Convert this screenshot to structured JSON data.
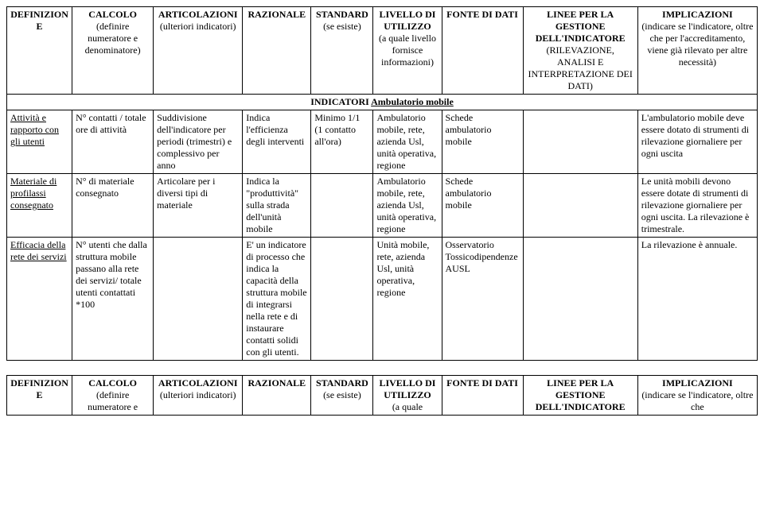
{
  "columns": [
    {
      "key": "def",
      "main": "DEFINIZIONE",
      "sub": ""
    },
    {
      "key": "calc",
      "main": "CALCOLO",
      "sub": "(definire numeratore e denominatore)"
    },
    {
      "key": "art",
      "main": "ARTICOLAZIONI",
      "sub": "(ulteriori indicatori)"
    },
    {
      "key": "raz",
      "main": "RAZIONALE",
      "sub": ""
    },
    {
      "key": "std",
      "main": "STANDARD",
      "sub": "(se esiste)"
    },
    {
      "key": "liv",
      "main": "LIVELLO DI UTILIZZO",
      "sub": "(a quale livello fornisce informazioni)"
    },
    {
      "key": "fonte",
      "main": "FONTE DI DATI",
      "sub": ""
    },
    {
      "key": "linee",
      "main": "LINEE PER LA GESTIONE DELL'INDICATORE",
      "sub": "(RILEVAZIONE, ANALISI E INTERPRETAZIONE DEI DATI)"
    },
    {
      "key": "impl",
      "main": "IMPLICAZIONI",
      "sub": "(indicare se l'indicatore, oltre che per l'accreditamento, viene già rilevato per altre necessità)"
    }
  ],
  "section_header": {
    "prefix": "INDICATORI ",
    "underline": "Ambulatorio mobile"
  },
  "rows": [
    {
      "def": "Attività e rapporto con gli utenti",
      "calc": "N° contatti / totale ore di attività",
      "art": "Suddivisione dell'indicatore per periodi (trimestri) e complessivo per anno",
      "raz": "Indica l'efficienza degli interventi",
      "std": "Minimo 1/1 (1 contatto all'ora)",
      "liv": "Ambulatorio mobile, rete, azienda Usl, unità operativa, regione",
      "fonte": "Schede ambulatorio mobile",
      "linee": "",
      "impl": "L'ambulatorio mobile deve essere dotato di strumenti di rilevazione giornaliere per ogni uscita"
    },
    {
      "def": "Materiale di profilassi consegnato",
      "calc": "N° di materiale consegnato",
      "art": "Articolare per i diversi tipi di materiale",
      "raz": "Indica la \"produttività\" sulla strada dell'unità mobile",
      "std": "",
      "liv": "Ambulatorio mobile, rete, azienda Usl, unità operativa, regione",
      "fonte": "Schede ambulatorio mobile",
      "linee": "",
      "impl": "Le unità mobili devono essere dotate di strumenti di rilevazione giornaliere per ogni uscita. La rilevazione è trimestrale."
    },
    {
      "def": "Efficacia della rete dei servizi",
      "calc": "N° utenti che dalla struttura mobile passano alla rete dei servizi/ totale utenti contattati *100",
      "art": "",
      "raz": "E' un indicatore di processo che indica la capacità della struttura mobile di integrarsi nella rete e di instaurare contatti solidi con gli utenti.",
      "std": "",
      "liv": "Unità mobile, rete, azienda Usl, unità operativa, regione",
      "fonte": "Osservatorio Tossicodipendenze AUSL",
      "linee": "",
      "impl": "La rilevazione è annuale."
    }
  ],
  "table2_columns": [
    {
      "main": "DEFINIZIONE",
      "sub": ""
    },
    {
      "main": "CALCOLO",
      "sub": "(definire numeratore e"
    },
    {
      "main": "ARTICOLAZIONI",
      "sub": "(ulteriori indicatori)"
    },
    {
      "main": "RAZIONALE",
      "sub": ""
    },
    {
      "main": "STANDARD",
      "sub": "(se esiste)"
    },
    {
      "main": "LIVELLO DI UTILIZZO",
      "sub": "(a quale"
    },
    {
      "main": "FONTE DI DATI",
      "sub": ""
    },
    {
      "main": "LINEE PER LA GESTIONE DELL'INDICATORE",
      "sub": ""
    },
    {
      "main": "IMPLICAZIONI",
      "sub": "(indicare se l'indicatore, oltre che"
    }
  ]
}
